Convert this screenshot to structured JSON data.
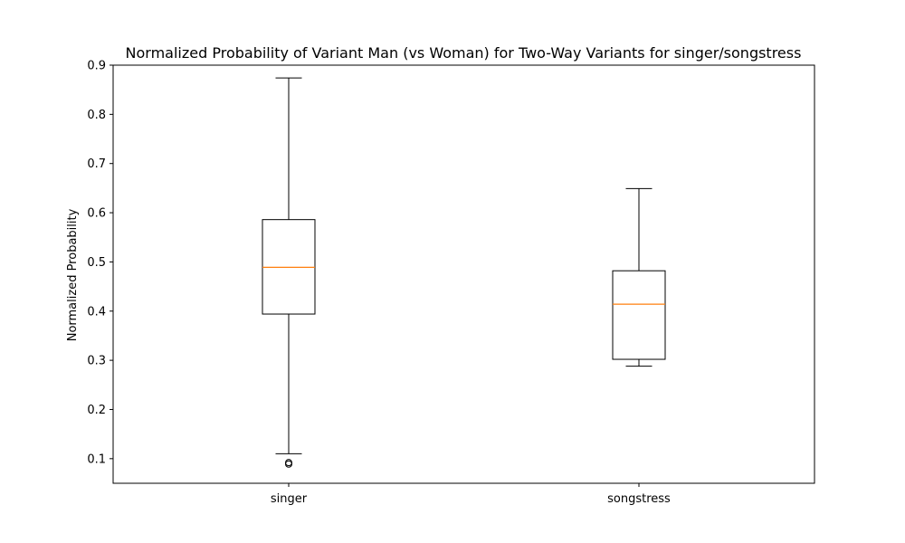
{
  "chart_data": {
    "type": "box",
    "title": "Normalized Probability of Variant Man (vs Woman) for Two-Way Variants for singer/songstress",
    "xlabel": "",
    "ylabel": "Normalized Probability",
    "ylim": [
      0.05,
      0.9
    ],
    "yticks": [
      0.1,
      0.2,
      0.3,
      0.4,
      0.5,
      0.6,
      0.7,
      0.8,
      0.9
    ],
    "ytick_labels": [
      "0.1",
      "0.2",
      "0.3",
      "0.4",
      "0.5",
      "0.6",
      "0.7",
      "0.8",
      "0.9"
    ],
    "categories": [
      "singer",
      "songstress"
    ],
    "boxes": [
      {
        "category": "singer",
        "whisker_low": 0.11,
        "q1": 0.394,
        "median": 0.489,
        "q3": 0.586,
        "whisker_high": 0.874,
        "outliers": [
          0.092,
          0.089
        ]
      },
      {
        "category": "songstress",
        "whisker_low": 0.288,
        "q1": 0.302,
        "median": 0.414,
        "q3": 0.482,
        "whisker_high": 0.649,
        "outliers": []
      }
    ],
    "colors": {
      "box": "#000000",
      "median": "#ff7f0e",
      "outlier": "#000000"
    },
    "grid": false,
    "legend": "none"
  }
}
